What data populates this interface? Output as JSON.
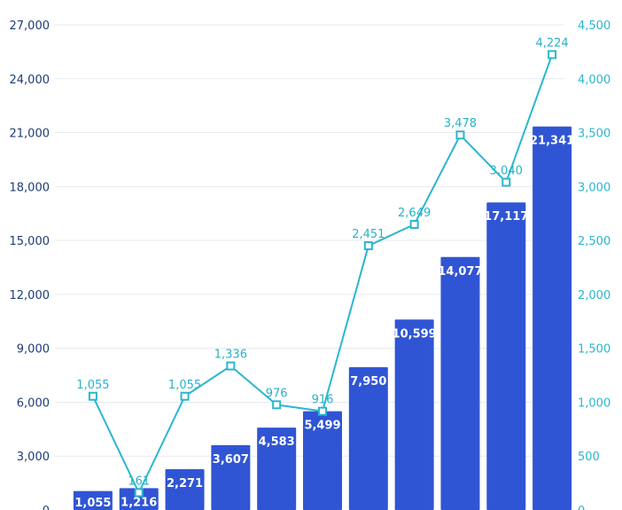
{
  "chart_data": {
    "type": "bar",
    "title": "",
    "xlabel": "",
    "ylabel": "",
    "left_axis": {
      "ylim": [
        0,
        27000
      ],
      "ticks": [
        0,
        3000,
        6000,
        9000,
        12000,
        15000,
        18000,
        21000,
        24000,
        27000
      ],
      "tick_labels": [
        "0",
        "3,000",
        "6,000",
        "9,000",
        "12,000",
        "15,000",
        "18,000",
        "21,000",
        "24,000",
        "27,000"
      ]
    },
    "right_axis": {
      "ylim": [
        0,
        4500
      ],
      "ticks": [
        0,
        500,
        1000,
        1500,
        2000,
        2500,
        3000,
        3500,
        4000,
        4500
      ],
      "tick_labels": [
        "0",
        "500",
        "1,000",
        "1,500",
        "2,000",
        "2,500",
        "3,000",
        "3,500",
        "4,000",
        "4,500"
      ]
    },
    "grid": true,
    "series": [
      {
        "type": "bar",
        "axis": "left",
        "color": "#3055d4",
        "values": [
          1055,
          1216,
          2271,
          3607,
          4583,
          5499,
          7950,
          10599,
          14077,
          17117,
          21341
        ],
        "labels": [
          "1,055",
          "1,216",
          "2,271",
          "3,607",
          "4,583",
          "5,499",
          "7,950",
          "10,599",
          "14,077",
          "17,117",
          "21,341"
        ]
      },
      {
        "type": "line",
        "axis": "right",
        "color": "#2bb6cf",
        "marker": "hollow-square",
        "values": [
          1055,
          161,
          1055,
          1336,
          976,
          916,
          2451,
          2649,
          3478,
          3040,
          4224
        ],
        "labels": [
          "1,055",
          "161",
          "1,055",
          "1,336",
          "976",
          "916",
          "2,451",
          "2,649",
          "3,478",
          "3,040",
          "4,224"
        ]
      }
    ]
  }
}
